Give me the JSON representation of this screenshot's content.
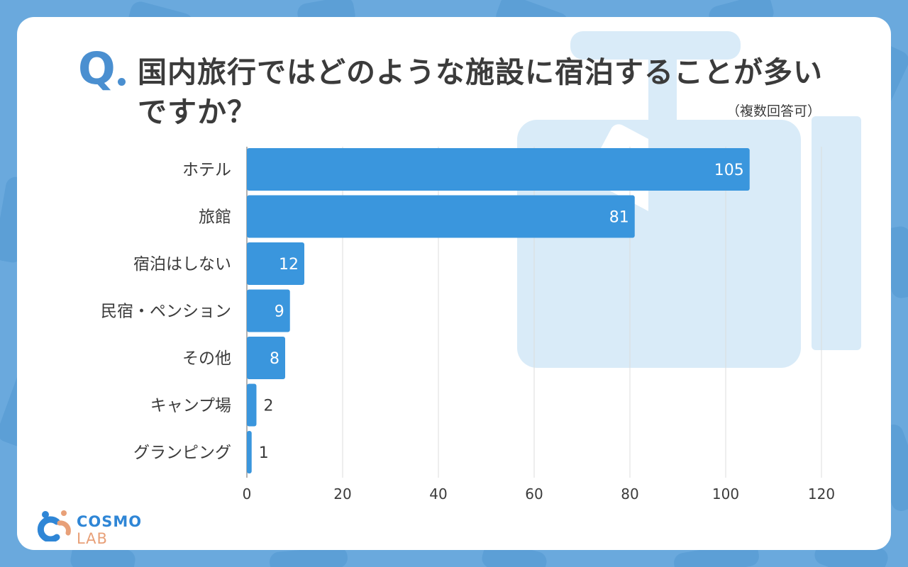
{
  "header": {
    "q_mark": "Q",
    "title": "国内旅行ではどのような施設に宿泊することが多いですか？",
    "note": "（複数回答可）"
  },
  "colors": {
    "background": "#6aa9dd",
    "card": "#ffffff",
    "bar": "#3a96dd",
    "accent": "#4a8fd0",
    "text": "#3b3b3b",
    "grid": "#dcdcdc",
    "suitcase": "#d9ebf8"
  },
  "logo": {
    "text_main": "COSMO",
    "text_sub": "LAB",
    "icon": "cosmo-lab-logo-icon"
  },
  "chart_data": {
    "type": "bar",
    "orientation": "horizontal",
    "categories": [
      "ホテル",
      "旅館",
      "宿泊はしない",
      "民宿・ペンション",
      "その他",
      "キャンプ場",
      "グランピング"
    ],
    "values": [
      105,
      81,
      12,
      9,
      8,
      2,
      1
    ],
    "xlim": [
      0,
      120
    ],
    "xticks": [
      0,
      20,
      40,
      60,
      80,
      100,
      120
    ],
    "grid": true,
    "legend": "none"
  }
}
